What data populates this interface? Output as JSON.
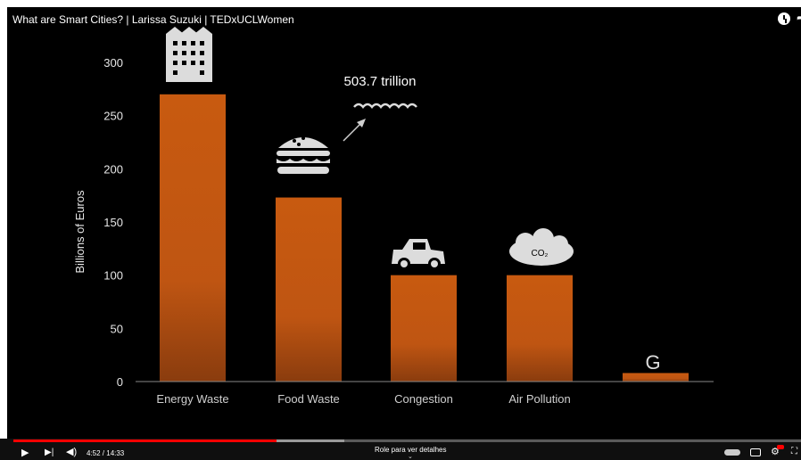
{
  "video": {
    "title": "What are Smart Cities? | Larissa Suzuki | TEDxUCLWomen",
    "time_current": "4:52",
    "time_total": "14:33",
    "time_display": "4:52 / 14:33",
    "played_fraction": 0.334,
    "buffered_fraction": 0.42,
    "scroll_hint": "Role para ver detalhes"
  },
  "annotation": {
    "text": "503.7 trillion"
  },
  "bar_icon_labels": {
    "co2": "CO₂",
    "g": "G"
  },
  "colors": {
    "bar": "#c55a11",
    "background": "#000000",
    "progress": "#ff0000"
  },
  "chart_data": {
    "type": "bar",
    "categories": [
      "Energy Waste",
      "Food Waste",
      "Congestion",
      "Air Pollution",
      ""
    ],
    "values": [
      270,
      173,
      100,
      100,
      8
    ],
    "ylabel": "Billions of Euros",
    "xlabel": "",
    "ylim": [
      0,
      300
    ],
    "yticks": [
      0,
      50,
      100,
      150,
      200,
      250,
      300
    ],
    "grid": false,
    "icons": [
      "building-icon",
      "burger-icon",
      "car-icon",
      "co2-cloud-icon",
      "g-letter-icon"
    ]
  }
}
